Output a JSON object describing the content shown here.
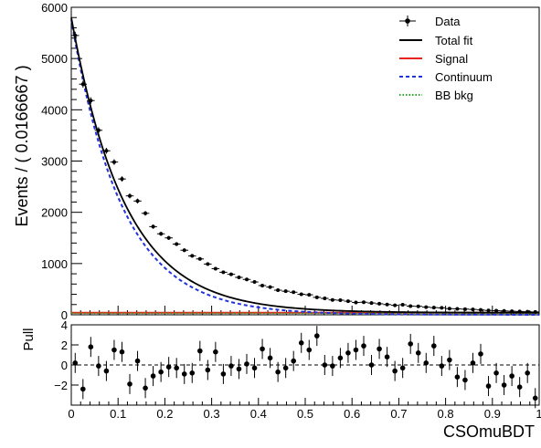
{
  "chart_data": {
    "type": "scatter",
    "ylabel": "Events / ( 0.0166667 )",
    "xlabel": "CSOmuBDT",
    "xlim": [
      0,
      1
    ],
    "ylim": [
      0,
      6000
    ],
    "x_ticks": [
      "0",
      "0.1",
      "0.2",
      "0.3",
      "0.4",
      "0.5",
      "0.6",
      "0.7",
      "0.8",
      "0.9",
      "1"
    ],
    "y_ticks": [
      "0",
      "1000",
      "2000",
      "3000",
      "4000",
      "5000",
      "6000"
    ],
    "legend_placement": "top-right",
    "legend": [
      {
        "label": "Data",
        "style": "marker",
        "color": "#000000"
      },
      {
        "label": "Total fit",
        "style": "solid",
        "color": "#000000"
      },
      {
        "label": "Signal",
        "style": "solid",
        "color": "#e8231e"
      },
      {
        "label": "Continuum",
        "style": "dashed",
        "color": "#2233dd"
      },
      {
        "label": "BB bkg",
        "style": "dotted",
        "color": "#22aa22"
      }
    ],
    "data_points": {
      "x": [
        0.00833,
        0.025,
        0.04167,
        0.05833,
        0.075,
        0.09167,
        0.10833,
        0.125,
        0.14167,
        0.15833,
        0.175,
        0.19167,
        0.20833,
        0.225,
        0.24167,
        0.25833,
        0.275,
        0.29167,
        0.30833,
        0.325,
        0.34167,
        0.35833,
        0.375,
        0.39167,
        0.40833,
        0.425,
        0.44167,
        0.45833,
        0.475,
        0.49167,
        0.50833,
        0.525,
        0.54167,
        0.55833,
        0.575,
        0.59167,
        0.60833,
        0.625,
        0.64167,
        0.65833,
        0.675,
        0.69167,
        0.70833,
        0.725,
        0.74167,
        0.75833,
        0.775,
        0.79167,
        0.80833,
        0.825,
        0.84167,
        0.85833,
        0.875,
        0.89167,
        0.90833,
        0.925,
        0.94167,
        0.95833,
        0.975,
        0.99167
      ],
      "y": [
        5450,
        4500,
        4180,
        3600,
        3200,
        2980,
        2650,
        2320,
        2220,
        1980,
        1720,
        1580,
        1500,
        1380,
        1260,
        1150,
        1090,
        990,
        900,
        830,
        790,
        730,
        690,
        640,
        570,
        540,
        480,
        460,
        440,
        400,
        390,
        340,
        320,
        290,
        285,
        265,
        240,
        245,
        230,
        215,
        200,
        185,
        195,
        170,
        165,
        150,
        140,
        135,
        120,
        115,
        110,
        105,
        95,
        85,
        80,
        75,
        70,
        65,
        60,
        55
      ]
    },
    "fit_curves": {
      "total_fit": {
        "function": "exponential",
        "y_at_0": 5800,
        "slope": -8.7,
        "baseline": 40
      },
      "continuum": {
        "function": "exponential",
        "y_at_0": 5760,
        "slope": -9.2,
        "baseline": 0
      },
      "signal": {
        "function": "flat",
        "value": 40
      },
      "bb_bkg": {
        "function": "flat",
        "value": 30
      }
    },
    "pull_panel": {
      "ylabel": "Pull",
      "ylim": [
        -4,
        4
      ],
      "y_ticks": [
        "−2",
        "0",
        "2",
        "4"
      ],
      "reference_line": 0,
      "values": [
        0.2,
        -2.4,
        1.8,
        -0.1,
        -0.6,
        1.5,
        1.3,
        -1.9,
        0.4,
        -2.3,
        -1.1,
        -0.7,
        -0.2,
        -0.3,
        -0.9,
        -0.8,
        1.4,
        -0.5,
        1.3,
        -0.9,
        -0.1,
        -0.4,
        0.1,
        -0.3,
        1.6,
        0.7,
        -0.7,
        -0.3,
        0.4,
        2.2,
        1.5,
        2.9,
        0,
        -0.1,
        0.7,
        1.2,
        1.5,
        1.9,
        0,
        1.6,
        0.8,
        -0.6,
        -0.3,
        2.1,
        1.2,
        0.2,
        1.9,
        -0.1,
        0.5,
        -1.2,
        -1.5,
        0.2,
        1.1,
        -2.1,
        -0.8,
        -2,
        -1.1,
        -2.2,
        -0.8,
        -3.3
      ],
      "errors": 1
    }
  }
}
